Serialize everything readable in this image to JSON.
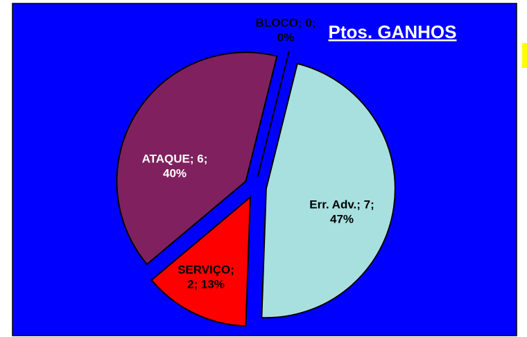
{
  "chart_data": {
    "type": "pie",
    "title": "Ptos. GANHOS",
    "categories": [
      "BLOCO",
      "Err. Adv.",
      "SERVIÇO",
      "ATAQUE"
    ],
    "values": [
      0,
      7,
      2,
      6
    ],
    "value_labels": [
      [
        "BLOCO; 0;",
        "0%"
      ],
      [
        "Err. Adv.; 7;",
        "47%"
      ],
      [
        "SERVIÇO;",
        "2; 13%"
      ],
      [
        "ATAQUE; 6;",
        "40%"
      ]
    ],
    "colors": [
      "#c0c0c0",
      "#a8e0e0",
      "#ff0000",
      "#80205f"
    ],
    "label_colors": [
      "#000000",
      "#000000",
      "#000000",
      "#ffffff"
    ]
  }
}
